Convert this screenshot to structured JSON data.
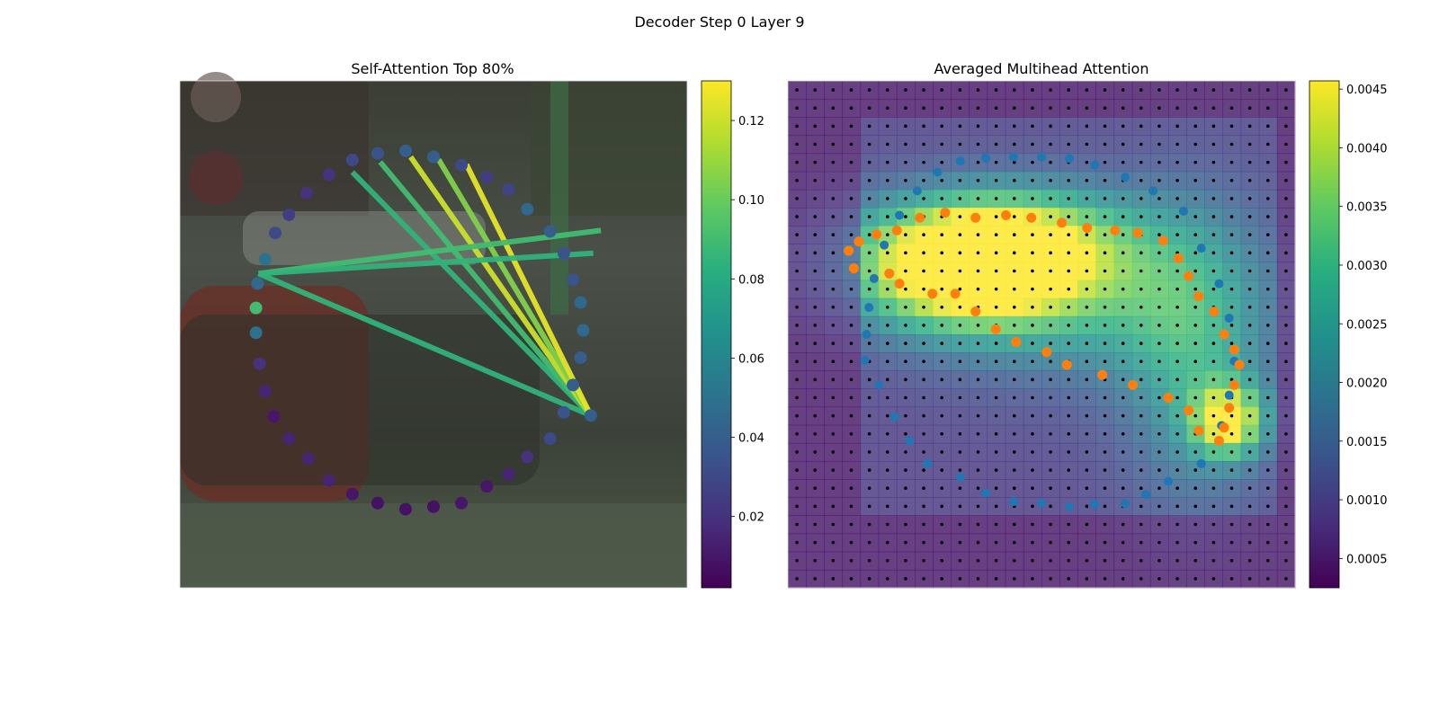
{
  "figure": {
    "title": "Decoder Step 0 Layer 9"
  },
  "colormap_name": "viridis",
  "chart_data": [
    {
      "type": "scatter",
      "title": "Self-Attention Top 80%",
      "description_points": "ring of 40 polygon vertex tokens drawn on the image, colored by attention weight from the query vertex",
      "xlim": [
        0,
        1
      ],
      "ylim": [
        0,
        1
      ],
      "colorbar": {
        "ticks": [
          0.02,
          0.04,
          0.06,
          0.08,
          0.1,
          0.12
        ],
        "tick_labels": [
          "0.02",
          "0.04",
          "0.06",
          "0.08",
          "0.10",
          "0.12"
        ],
        "range": [
          0.002,
          0.13
        ]
      },
      "query_vertex": [
        0.81,
        0.66
      ],
      "vertices": [
        [
          0.5,
          0.15,
          0.04
        ],
        [
          0.555,
          0.166,
          0.03
        ],
        [
          0.605,
          0.19,
          0.025
        ],
        [
          0.648,
          0.214,
          0.028
        ],
        [
          0.685,
          0.253,
          0.045
        ],
        [
          0.73,
          0.297,
          0.04
        ],
        [
          0.757,
          0.34,
          0.035
        ],
        [
          0.775,
          0.392,
          0.035
        ],
        [
          0.79,
          0.437,
          0.045
        ],
        [
          0.795,
          0.492,
          0.045
        ],
        [
          0.79,
          0.546,
          0.04
        ],
        [
          0.775,
          0.6,
          0.04
        ],
        [
          0.757,
          0.654,
          0.035
        ],
        [
          0.73,
          0.706,
          0.03
        ],
        [
          0.685,
          0.742,
          0.02
        ],
        [
          0.648,
          0.776,
          0.015
        ],
        [
          0.605,
          0.8,
          0.01
        ],
        [
          0.555,
          0.833,
          0.01
        ],
        [
          0.5,
          0.84,
          0.008
        ],
        [
          0.445,
          0.845,
          0.008
        ],
        [
          0.39,
          0.833,
          0.008
        ],
        [
          0.34,
          0.815,
          0.01
        ],
        [
          0.294,
          0.788,
          0.015
        ],
        [
          0.253,
          0.745,
          0.015
        ],
        [
          0.215,
          0.706,
          0.015
        ],
        [
          0.185,
          0.662,
          0.01
        ],
        [
          0.168,
          0.612,
          0.015
        ],
        [
          0.157,
          0.558,
          0.02
        ],
        [
          0.15,
          0.497,
          0.05
        ],
        [
          0.15,
          0.448,
          0.09
        ],
        [
          0.153,
          0.4,
          0.045
        ],
        [
          0.168,
          0.352,
          0.05
        ],
        [
          0.188,
          0.3,
          0.03
        ],
        [
          0.215,
          0.264,
          0.025
        ],
        [
          0.25,
          0.221,
          0.02
        ],
        [
          0.294,
          0.185,
          0.02
        ],
        [
          0.34,
          0.156,
          0.03
        ],
        [
          0.39,
          0.143,
          0.035
        ],
        [
          0.445,
          0.138,
          0.04
        ],
        [
          0.5,
          0.15,
          0.04
        ]
      ],
      "edges": [
        {
          "to": [
            0.155,
            0.38
          ],
          "weight": 0.085
        },
        {
          "to": [
            0.34,
            0.18
          ],
          "weight": 0.085
        },
        {
          "to": [
            0.395,
            0.16
          ],
          "weight": 0.09
        },
        {
          "to": [
            0.455,
            0.15
          ],
          "weight": 0.12
        },
        {
          "to": [
            0.51,
            0.155
          ],
          "weight": 0.105
        },
        {
          "to": [
            0.565,
            0.165
          ],
          "weight": 0.125
        },
        {
          "to": [
            0.83,
            0.295
          ],
          "weight": 0.09,
          "from": [
            0.155,
            0.38
          ]
        },
        {
          "to": [
            0.815,
            0.34
          ],
          "weight": 0.085,
          "from": [
            0.155,
            0.38
          ]
        }
      ]
    },
    {
      "type": "heatmap",
      "title": "Averaged Multihead Attention",
      "grid_cols": 28,
      "grid_rows": 28,
      "colorbar": {
        "ticks": [
          0.0005,
          0.001,
          0.0015,
          0.002,
          0.0025,
          0.003,
          0.0035,
          0.004,
          0.0045
        ],
        "tick_labels": [
          "0.0005",
          "0.0010",
          "0.0015",
          "0.0020",
          "0.0025",
          "0.0030",
          "0.0035",
          "0.0040",
          "0.0045"
        ],
        "range": [
          0.00025,
          0.00457
        ]
      },
      "hotspots": [
        {
          "center": [
            0.35,
            0.38
          ],
          "sigma": [
            0.16,
            0.08
          ],
          "amp": 0.004
        },
        {
          "center": [
            0.42,
            0.3
          ],
          "sigma": [
            0.18,
            0.07
          ],
          "amp": 0.0022
        },
        {
          "center": [
            0.87,
            0.67
          ],
          "sigma": [
            0.05,
            0.05
          ],
          "amp": 0.0032
        },
        {
          "center": [
            0.6,
            0.42
          ],
          "sigma": [
            0.22,
            0.12
          ],
          "amp": 0.0015
        },
        {
          "center": [
            0.8,
            0.55
          ],
          "sigma": [
            0.1,
            0.2
          ],
          "amp": 0.0015
        }
      ],
      "baseline": 0.0009,
      "blue_points": [
        [
          0.5,
          0.15
        ],
        [
          0.555,
          0.153
        ],
        [
          0.605,
          0.166
        ],
        [
          0.665,
          0.19
        ],
        [
          0.72,
          0.217
        ],
        [
          0.78,
          0.257
        ],
        [
          0.815,
          0.33
        ],
        [
          0.85,
          0.4
        ],
        [
          0.87,
          0.468
        ],
        [
          0.88,
          0.553
        ],
        [
          0.87,
          0.62
        ],
        [
          0.855,
          0.68
        ],
        [
          0.815,
          0.755
        ],
        [
          0.75,
          0.79
        ],
        [
          0.706,
          0.816
        ],
        [
          0.665,
          0.834
        ],
        [
          0.605,
          0.835
        ],
        [
          0.555,
          0.84
        ],
        [
          0.5,
          0.833
        ],
        [
          0.445,
          0.83
        ],
        [
          0.39,
          0.813
        ],
        [
          0.34,
          0.782
        ],
        [
          0.275,
          0.755
        ],
        [
          0.24,
          0.71
        ],
        [
          0.21,
          0.663
        ],
        [
          0.18,
          0.6
        ],
        [
          0.152,
          0.551
        ],
        [
          0.155,
          0.5
        ],
        [
          0.16,
          0.447
        ],
        [
          0.17,
          0.39
        ],
        [
          0.19,
          0.324
        ],
        [
          0.22,
          0.265
        ],
        [
          0.255,
          0.217
        ],
        [
          0.295,
          0.18
        ],
        [
          0.34,
          0.158
        ],
        [
          0.39,
          0.152
        ],
        [
          0.445,
          0.15
        ]
      ],
      "orange_points": [
        [
          0.14,
          0.317
        ],
        [
          0.175,
          0.303
        ],
        [
          0.215,
          0.295
        ],
        [
          0.26,
          0.27
        ],
        [
          0.31,
          0.26
        ],
        [
          0.37,
          0.27
        ],
        [
          0.43,
          0.265
        ],
        [
          0.48,
          0.27
        ],
        [
          0.54,
          0.28
        ],
        [
          0.59,
          0.29
        ],
        [
          0.645,
          0.295
        ],
        [
          0.69,
          0.3
        ],
        [
          0.74,
          0.315
        ],
        [
          0.77,
          0.35
        ],
        [
          0.79,
          0.385
        ],
        [
          0.81,
          0.425
        ],
        [
          0.84,
          0.455
        ],
        [
          0.86,
          0.5
        ],
        [
          0.88,
          0.53
        ],
        [
          0.89,
          0.56
        ],
        [
          0.88,
          0.6
        ],
        [
          0.87,
          0.645
        ],
        [
          0.86,
          0.684
        ],
        [
          0.85,
          0.71
        ],
        [
          0.81,
          0.69
        ],
        [
          0.79,
          0.65
        ],
        [
          0.75,
          0.625
        ],
        [
          0.68,
          0.6
        ],
        [
          0.62,
          0.58
        ],
        [
          0.55,
          0.56
        ],
        [
          0.51,
          0.535
        ],
        [
          0.45,
          0.515
        ],
        [
          0.41,
          0.49
        ],
        [
          0.37,
          0.455
        ],
        [
          0.33,
          0.42
        ],
        [
          0.285,
          0.42
        ],
        [
          0.22,
          0.4
        ],
        [
          0.2,
          0.38
        ],
        [
          0.13,
          0.37
        ],
        [
          0.12,
          0.335
        ]
      ]
    }
  ]
}
